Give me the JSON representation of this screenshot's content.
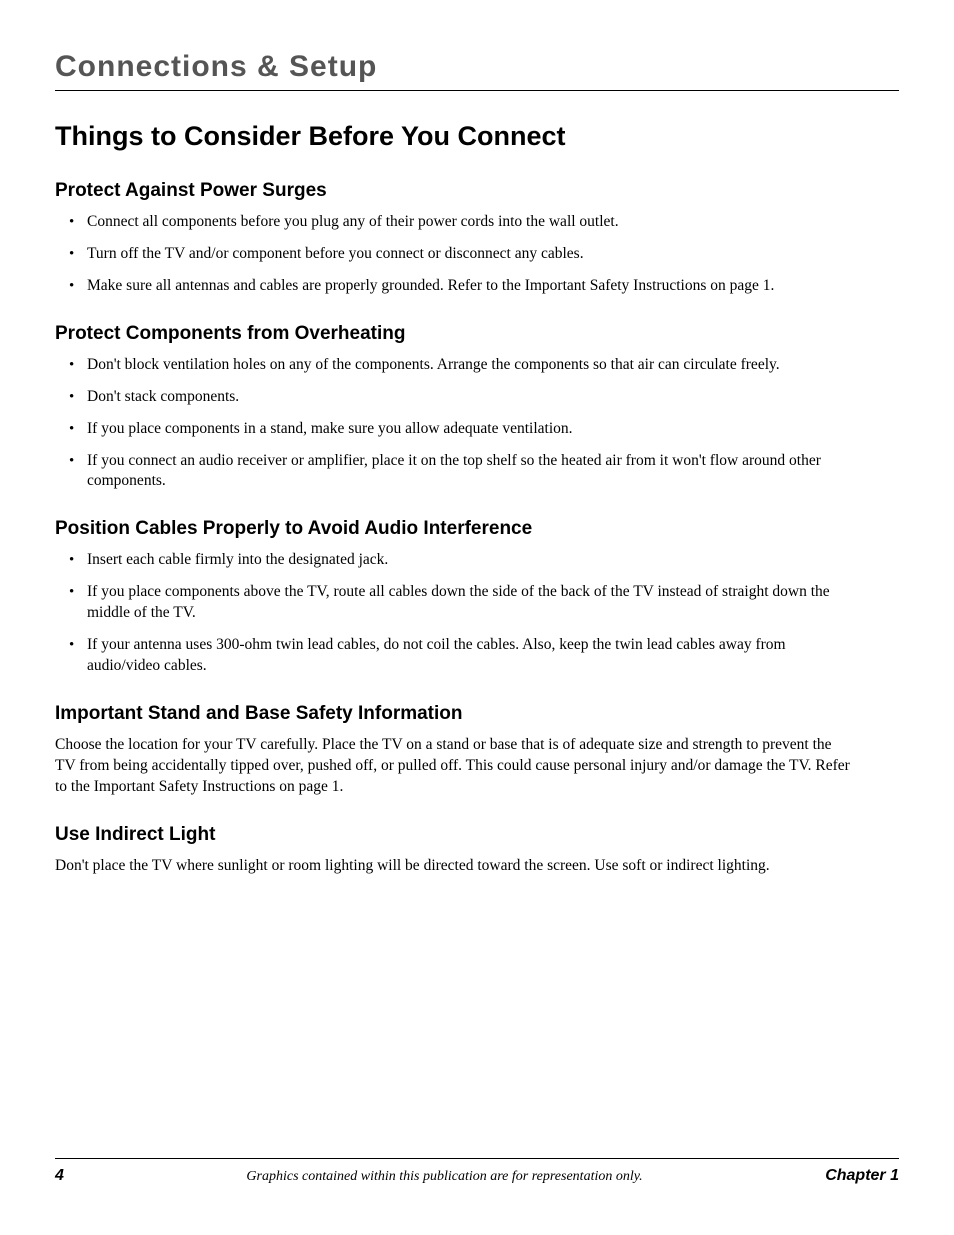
{
  "header": {
    "chapter_title": "Connections & Setup"
  },
  "title": "Things to Consider Before You Connect",
  "sections": [
    {
      "heading": "Protect Against Power Surges",
      "bullets": [
        "Connect all components before you plug any of their power cords into the wall outlet.",
        "Turn off the TV and/or component before you connect or disconnect any cables.",
        "Make sure all antennas and cables are properly grounded. Refer to the Important Safety Instructions on page 1."
      ]
    },
    {
      "heading": "Protect Components from Overheating",
      "bullets": [
        "Don't block ventilation holes on any of the components. Arrange the components so that air can circulate freely.",
        "Don't stack components.",
        "If you place components in a stand, make sure you allow adequate ventilation.",
        "If you connect an audio receiver or amplifier, place it on the top shelf so the heated air from it won't flow around other components."
      ]
    },
    {
      "heading": "Position Cables Properly to Avoid Audio Interference",
      "bullets": [
        "Insert each cable firmly into the designated jack.",
        "If you place components above the TV, route all cables down the side of the back of the TV instead of straight down the middle of the TV.",
        "If your antenna uses 300-ohm twin lead cables, do not coil the cables. Also, keep the twin lead cables away from audio/video cables."
      ]
    },
    {
      "heading": "Important Stand and Base Safety Information",
      "paragraph": "Choose the location for your TV carefully. Place the TV on a stand or base that is of adequate size and strength to prevent the TV from being accidentally tipped over, pushed off, or pulled off. This could cause personal injury and/or damage the TV. Refer to the Important Safety Instructions on page 1."
    },
    {
      "heading": "Use Indirect Light",
      "paragraph": "Don't place the TV where sunlight or room lighting will be directed toward the screen. Use soft or indirect lighting."
    }
  ],
  "footer": {
    "page_number": "4",
    "center_text": "Graphics contained within this publication are for representation only.",
    "chapter_ref": "Chapter 1"
  },
  "styling": {
    "page_bg": "#ffffff",
    "text_color": "#000000",
    "header_text_color": "#555555",
    "rule_color": "#000000",
    "body_font": "Georgia, 'Times New Roman', serif",
    "heading_font": "'Segoe UI', 'Helvetica Neue', Arial, sans-serif",
    "chapter_header_fontsize": 30,
    "h1_fontsize": 27,
    "h2_fontsize": 19,
    "body_fontsize": 15.5,
    "footer_fontsize": 14
  }
}
